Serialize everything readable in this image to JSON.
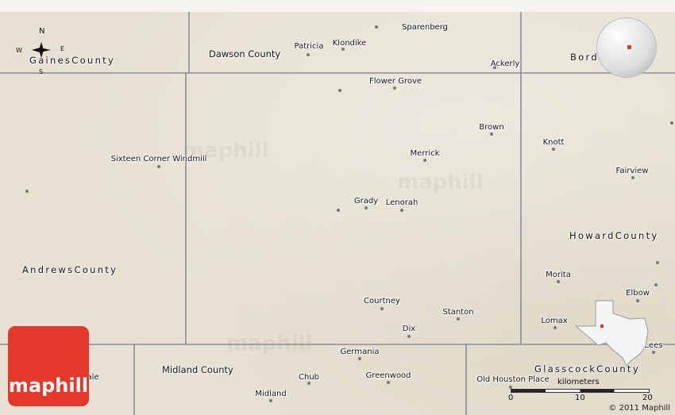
{
  "compass": {
    "n": "N",
    "e": "E",
    "s": "S",
    "w": "W"
  },
  "counties": {
    "gaines": "GainesCounty",
    "dawson": "Dawson County",
    "borden": "BordenCounty",
    "andrews": "AndrewsCounty",
    "howard": "HowardCounty",
    "midland": "Midland County",
    "glasscock": "GlasscockCounty"
  },
  "places": [
    "Sparenberg",
    "Patricia",
    "Klondike",
    "Ackerly",
    "Flower Grove",
    "Brown",
    "Knott",
    "Sixteen Corner Windmill",
    "Merrick",
    "Fairview",
    "Grady",
    "Lenorah",
    "Morita",
    "Elbow",
    "Courtney",
    "Stanton",
    "Lomax",
    "Dix",
    "Lees",
    "Germania",
    "Chub",
    "Greenwood",
    "Old Houston Place",
    "Midland",
    "ale"
  ],
  "logo": "maphill",
  "watermark": "maphill",
  "scale": {
    "unit": "kilometers",
    "ticks": [
      "0",
      "10",
      "20"
    ]
  },
  "copyright": "© 2011 Maphill",
  "colors": {
    "logo": "#e4382a",
    "marker": "#e4382a",
    "border": "#8a8d93"
  }
}
